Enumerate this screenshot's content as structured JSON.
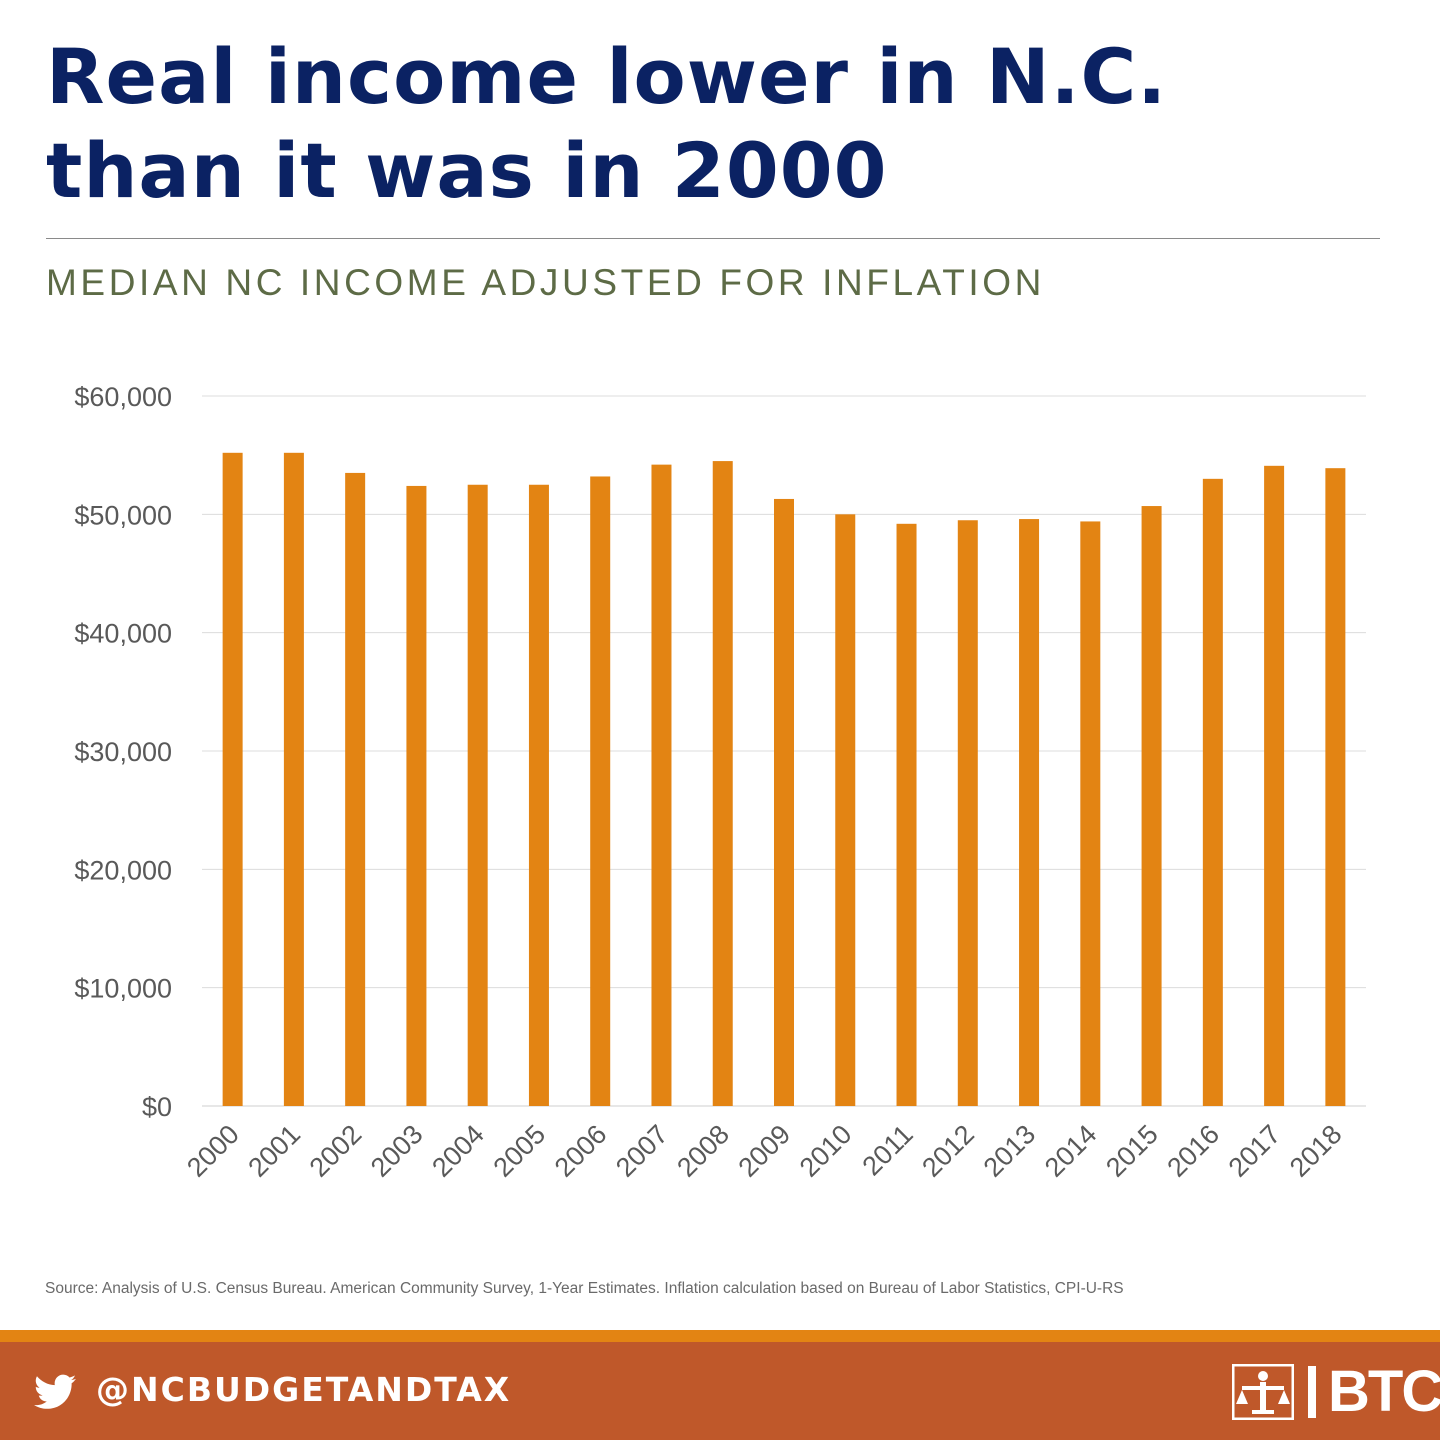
{
  "headline": {
    "line1": "Real income lower in N.C.",
    "line2": "than it was in 2000"
  },
  "subtitle": "MEDIAN NC INCOME ADJUSTED FOR INFLATION",
  "chart_data": {
    "type": "bar",
    "title": "MEDIAN NC INCOME ADJUSTED FOR INFLATION",
    "xlabel": "",
    "ylabel": "",
    "categories": [
      "2000",
      "2001",
      "2002",
      "2003",
      "2004",
      "2005",
      "2006",
      "2007",
      "2008",
      "2009",
      "2010",
      "2011",
      "2012",
      "2013",
      "2014",
      "2015",
      "2016",
      "2017",
      "2018"
    ],
    "values": [
      55200,
      55200,
      53500,
      52400,
      52500,
      52500,
      53200,
      54200,
      54500,
      51300,
      50000,
      49200,
      49500,
      49600,
      49400,
      50700,
      53000,
      54100,
      53900
    ],
    "ylim": [
      0,
      60000
    ],
    "yticks": [
      0,
      10000,
      20000,
      30000,
      40000,
      50000,
      60000
    ],
    "ytick_labels": [
      "$0",
      "$10,000",
      "$20,000",
      "$30,000",
      "$40,000",
      "$50,000",
      "$60,000"
    ],
    "grid": true,
    "legend": "none",
    "bar_color": "#e38413"
  },
  "source": "Source: Analysis of U.S. Census Bureau. American Community Survey, 1-Year Estimates. Inflation calculation based on Bureau of Labor Statistics, CPI-U-RS",
  "footer": {
    "handle": "@NCBUDGETANDTAX",
    "logo_text": "BTC",
    "stripe_color": "#e38413",
    "bar_color": "#bf582a",
    "icons": [
      "twitter-icon",
      "btc-logo-mark"
    ]
  }
}
